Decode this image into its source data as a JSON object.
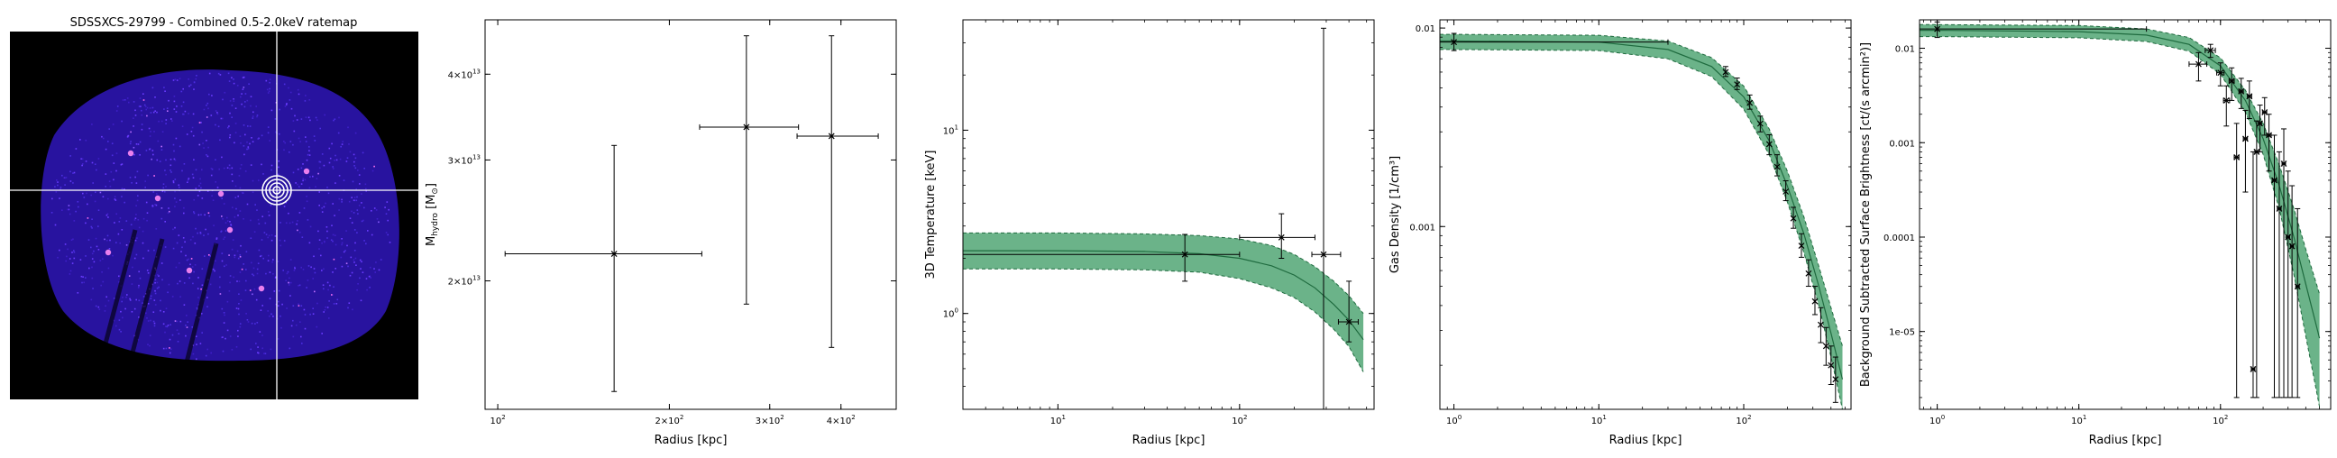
{
  "colors": {
    "band_fill": "#3a9a62",
    "band_edge": "#1f6b3f",
    "image_bg": "#000000",
    "crosshair": "#ffffff",
    "data": "#000000"
  },
  "chart_data": [
    {
      "type": "image",
      "title": "SDSSXCS-29799 - Combined 0.5-2.0keV ratemap",
      "markers": [
        "crosshair",
        "concentric-annuli"
      ]
    },
    {
      "type": "scatter",
      "title": "",
      "xlabel": "Radius [kpc]",
      "ylabel": "M_hydro [M_sun]",
      "xscale": "log",
      "yscale": "log",
      "xlim": [
        95,
        500
      ],
      "ylim": [
        13000000000000.0,
        48000000000000.0
      ],
      "xticks": [
        {
          "value": 100,
          "label": "10^2"
        },
        {
          "value": 200,
          "label": "2×10^2"
        },
        {
          "value": 300,
          "label": "3×10^2"
        },
        {
          "value": 400,
          "label": "4×10^2"
        }
      ],
      "yticks": [
        {
          "value": 20000000000000.0,
          "label": "2×10^13"
        },
        {
          "value": 30000000000000.0,
          "label": "3×10^13"
        },
        {
          "value": 40000000000000.0,
          "label": "4×10^13"
        }
      ],
      "points": [
        {
          "x": 160,
          "y": 21900000000000.0,
          "xlo": 103,
          "xhi": 228,
          "ylo": 13800000000000.0,
          "yhi": 31500000000000.0
        },
        {
          "x": 273,
          "y": 33500000000000.0,
          "xlo": 226,
          "xhi": 337,
          "ylo": 18500000000000.0,
          "yhi": 45500000000000.0
        },
        {
          "x": 385,
          "y": 32500000000000.0,
          "xlo": 335,
          "xhi": 465,
          "ylo": 16000000000000.0,
          "yhi": 45500000000000.0
        }
      ]
    },
    {
      "type": "scatter",
      "title": "",
      "xlabel": "Radius [kpc]",
      "ylabel": "3D Temperature [keV]",
      "xscale": "log",
      "yscale": "log",
      "xlim": [
        3,
        550
      ],
      "ylim": [
        0.3,
        40
      ],
      "xticks": [
        {
          "value": 10,
          "label": "10^1"
        },
        {
          "value": 100,
          "label": "10^2"
        }
      ],
      "yticks": [
        {
          "value": 1,
          "label": "10^0"
        },
        {
          "value": 10,
          "label": "10^1"
        }
      ],
      "points": [
        {
          "x": 50,
          "y": 2.1,
          "xlo": 2.5,
          "xhi": 100,
          "ylo": 1.5,
          "yhi": 2.7
        },
        {
          "x": 170,
          "y": 2.6,
          "xlo": 100,
          "xhi": 260,
          "ylo": 2.0,
          "yhi": 3.5
        },
        {
          "x": 290,
          "y": 2.1,
          "xlo": 250,
          "xhi": 360,
          "ylo": 0.3,
          "yhi": 36
        },
        {
          "x": 400,
          "y": 0.9,
          "xlo": 350,
          "xhi": 450,
          "ylo": 0.7,
          "yhi": 1.5
        }
      ],
      "model": {
        "x": [
          3,
          10,
          30,
          60,
          100,
          150,
          200,
          260,
          330,
          400,
          480
        ],
        "median": [
          2.2,
          2.2,
          2.18,
          2.12,
          2.0,
          1.82,
          1.62,
          1.38,
          1.12,
          0.92,
          0.72
        ],
        "lower": [
          1.75,
          1.75,
          1.73,
          1.68,
          1.55,
          1.38,
          1.22,
          1.02,
          0.82,
          0.66,
          0.48
        ],
        "upper": [
          2.75,
          2.75,
          2.72,
          2.66,
          2.55,
          2.35,
          2.1,
          1.8,
          1.5,
          1.25,
          1.0
        ]
      }
    },
    {
      "type": "scatter",
      "title": "",
      "xlabel": "Radius [kpc]",
      "ylabel": "Gas Density [1/cm^3]",
      "xscale": "log",
      "yscale": "log",
      "xlim": [
        0.8,
        550
      ],
      "ylim": [
        0.00012,
        0.011
      ],
      "xticks": [
        {
          "value": 1,
          "label": "10^0"
        },
        {
          "value": 10,
          "label": "10^1"
        },
        {
          "value": 100,
          "label": "10^2"
        }
      ],
      "yticks": [
        {
          "value": 0.001,
          "label": "0.001"
        },
        {
          "value": 0.01,
          "label": "0.01"
        }
      ],
      "points": [
        {
          "x": 1.0,
          "y": 0.0085,
          "xlo": 0.8,
          "xhi": 30,
          "ylo": 0.0077,
          "yhi": 0.0094
        },
        {
          "x": 75,
          "y": 0.006,
          "ylo": 0.0057,
          "yhi": 0.0064
        },
        {
          "x": 90,
          "y": 0.0052,
          "ylo": 0.0049,
          "yhi": 0.0056
        },
        {
          "x": 110,
          "y": 0.0042,
          "ylo": 0.0039,
          "yhi": 0.0046
        },
        {
          "x": 130,
          "y": 0.0033,
          "ylo": 0.003,
          "yhi": 0.0036
        },
        {
          "x": 150,
          "y": 0.0026,
          "ylo": 0.0023,
          "yhi": 0.0029
        },
        {
          "x": 170,
          "y": 0.002,
          "ylo": 0.0018,
          "yhi": 0.0023
        },
        {
          "x": 195,
          "y": 0.0015,
          "ylo": 0.00135,
          "yhi": 0.0017
        },
        {
          "x": 220,
          "y": 0.0011,
          "ylo": 0.00098,
          "yhi": 0.00125
        },
        {
          "x": 250,
          "y": 0.0008,
          "ylo": 0.0007,
          "yhi": 0.00092
        },
        {
          "x": 280,
          "y": 0.00058,
          "ylo": 0.0005,
          "yhi": 0.00068
        },
        {
          "x": 310,
          "y": 0.00042,
          "ylo": 0.00036,
          "yhi": 0.0005
        },
        {
          "x": 340,
          "y": 0.00032,
          "ylo": 0.00026,
          "yhi": 0.00039
        },
        {
          "x": 370,
          "y": 0.00025,
          "ylo": 0.0002,
          "yhi": 0.00031
        },
        {
          "x": 400,
          "y": 0.0002,
          "ylo": 0.00016,
          "yhi": 0.00025
        },
        {
          "x": 430,
          "y": 0.00017,
          "ylo": 0.00013,
          "yhi": 0.00022
        }
      ],
      "model": {
        "x": [
          0.8,
          1,
          10,
          30,
          60,
          100,
          150,
          200,
          260,
          330,
          400,
          480
        ],
        "median": [
          0.0086,
          0.0086,
          0.0085,
          0.0078,
          0.0064,
          0.0045,
          0.0027,
          0.0016,
          0.00092,
          0.0005,
          0.00029,
          0.00017
        ],
        "lower": [
          0.0078,
          0.0078,
          0.0077,
          0.007,
          0.0057,
          0.0039,
          0.0023,
          0.00133,
          0.00074,
          0.0004,
          0.00022,
          0.00012
        ],
        "upper": [
          0.0093,
          0.0093,
          0.0092,
          0.0086,
          0.0071,
          0.0051,
          0.0031,
          0.0019,
          0.00112,
          0.00063,
          0.00039,
          0.00025
        ]
      }
    },
    {
      "type": "scatter",
      "title": "",
      "xlabel": "Radius [kpc]",
      "ylabel": "Background Subtracted Surface Brightness [ct/(s arcmin^2)]",
      "xscale": "log",
      "yscale": "log",
      "xlim": [
        0.75,
        600
      ],
      "ylim": [
        1.5e-06,
        0.02
      ],
      "xticks": [
        {
          "value": 1,
          "label": "10^0"
        },
        {
          "value": 10,
          "label": "10^1"
        },
        {
          "value": 100,
          "label": "10^2"
        }
      ],
      "yticks": [
        {
          "value": 1e-05,
          "label": "1e-05"
        },
        {
          "value": 0.0001,
          "label": "0.0001"
        },
        {
          "value": 0.001,
          "label": "0.001"
        },
        {
          "value": 0.01,
          "label": "0.01"
        }
      ],
      "points": [
        {
          "x": 1.0,
          "y": 0.016,
          "xlo": 0.75,
          "xhi": 30,
          "ylo": 0.013,
          "yhi": 0.019
        },
        {
          "x": 70,
          "y": 0.0068,
          "xlo": 60,
          "xhi": 80,
          "ylo": 0.0045,
          "yhi": 0.009
        },
        {
          "x": 85,
          "y": 0.0095,
          "xlo": 78,
          "xhi": 92,
          "ylo": 0.008,
          "yhi": 0.011
        },
        {
          "x": 100,
          "y": 0.0055,
          "xlo": 94,
          "xhi": 106,
          "ylo": 0.004,
          "yhi": 0.007
        },
        {
          "x": 110,
          "y": 0.0028,
          "xlo": 105,
          "xhi": 116,
          "ylo": 0.0015,
          "yhi": 0.004
        },
        {
          "x": 120,
          "y": 0.0045,
          "xlo": 115,
          "xhi": 125,
          "ylo": 0.0028,
          "yhi": 0.0062
        },
        {
          "x": 130,
          "y": 0.0007,
          "xlo": 125,
          "xhi": 135,
          "ylo": 2e-06,
          "yhi": 0.0016
        },
        {
          "x": 140,
          "y": 0.0035,
          "xlo": 135,
          "xhi": 145,
          "ylo": 0.0023,
          "yhi": 0.0048
        },
        {
          "x": 150,
          "y": 0.0011,
          "xlo": 145,
          "xhi": 155,
          "ylo": 0.0003,
          "yhi": 0.0022
        },
        {
          "x": 160,
          "y": 0.0031,
          "xlo": 155,
          "xhi": 166,
          "ylo": 0.0018,
          "yhi": 0.0045
        },
        {
          "x": 170,
          "y": 4e-06,
          "xlo": 165,
          "xhi": 175,
          "ylo": 2e-06,
          "yhi": 0.0008
        },
        {
          "x": 180,
          "y": 0.0008,
          "xlo": 175,
          "xhi": 186,
          "ylo": 2e-06,
          "yhi": 0.0017
        },
        {
          "x": 190,
          "y": 0.0016,
          "xlo": 185,
          "xhi": 195,
          "ylo": 0.0008,
          "yhi": 0.0025
        },
        {
          "x": 205,
          "y": 0.0021,
          "xlo": 198,
          "xhi": 212,
          "ylo": 0.0012,
          "yhi": 0.003
        },
        {
          "x": 220,
          "y": 0.0012,
          "xlo": 212,
          "xhi": 228,
          "ylo": 0.0005,
          "yhi": 0.002
        },
        {
          "x": 240,
          "y": 0.0004,
          "xlo": 232,
          "xhi": 248,
          "ylo": 2e-06,
          "yhi": 0.0012
        },
        {
          "x": 260,
          "y": 0.0002,
          "xlo": 252,
          "xhi": 268,
          "ylo": 2e-06,
          "yhi": 0.0008
        },
        {
          "x": 280,
          "y": 0.0006,
          "xlo": 272,
          "xhi": 288,
          "ylo": 2e-06,
          "yhi": 0.0014
        },
        {
          "x": 300,
          "y": 0.0001,
          "xlo": 292,
          "xhi": 308,
          "ylo": 2e-06,
          "yhi": 0.0005
        },
        {
          "x": 320,
          "y": 8e-05,
          "xlo": 312,
          "xhi": 328,
          "ylo": 2e-06,
          "yhi": 0.00035
        },
        {
          "x": 350,
          "y": 3e-05,
          "xlo": 340,
          "xhi": 360,
          "ylo": 2e-06,
          "yhi": 0.0002
        }
      ],
      "model": {
        "x": [
          0.75,
          1,
          10,
          30,
          60,
          100,
          150,
          200,
          260,
          330,
          400,
          500
        ],
        "median": [
          0.0155,
          0.0155,
          0.015,
          0.0138,
          0.011,
          0.0065,
          0.0028,
          0.0011,
          0.00035,
          0.0001,
          3.2e-05,
          8.5e-06
        ],
        "lower": [
          0.0133,
          0.0133,
          0.0129,
          0.0118,
          0.0093,
          0.0053,
          0.0021,
          0.00075,
          0.0002,
          4e-05,
          9e-06,
          1.6e-06
        ],
        "upper": [
          0.0178,
          0.0178,
          0.0174,
          0.016,
          0.013,
          0.0079,
          0.0036,
          0.0016,
          0.00058,
          0.0002,
          7.5e-05,
          2.5e-05
        ]
      }
    }
  ]
}
